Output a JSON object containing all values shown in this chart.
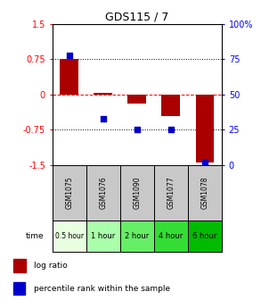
{
  "title": "GDS115 / 7",
  "samples": [
    "GSM1075",
    "GSM1076",
    "GSM1090",
    "GSM1077",
    "GSM1078"
  ],
  "time_labels": [
    "0.5 hour",
    "1 hour",
    "2 hour",
    "4 hour",
    "6 hour"
  ],
  "time_colors": [
    "#e8ffe0",
    "#aaffaa",
    "#66ee66",
    "#33dd33",
    "#00bb00"
  ],
  "log_ratios": [
    0.75,
    0.03,
    -0.2,
    -0.45,
    -1.45
  ],
  "percentile_ranks": [
    78,
    33,
    25,
    25,
    2
  ],
  "bar_color": "#aa0000",
  "dot_color": "#0000cc",
  "ylim_left": [
    -1.5,
    1.5
  ],
  "ylim_right": [
    0,
    100
  ],
  "yticks_left": [
    -1.5,
    -0.75,
    0,
    0.75,
    1.5
  ],
  "yticks_right": [
    0,
    25,
    50,
    75,
    100
  ],
  "ytick_labels_left": [
    "-1.5",
    "-0.75",
    "0",
    "0.75",
    "1.5"
  ],
  "ytick_labels_right": [
    "0",
    "25",
    "50",
    "75",
    "100%"
  ],
  "hlines": [
    0.75,
    0.0,
    -0.75
  ],
  "hline_styles": [
    "dotted",
    "dashed",
    "dotted"
  ],
  "hline_colors": [
    "black",
    "red",
    "black"
  ],
  "legend_log_ratio": "log ratio",
  "legend_percentile": "percentile rank within the sample",
  "time_row_label": "time",
  "bar_width": 0.55,
  "cell_gray": "#c8c8c8",
  "fig_bg": "#ffffff"
}
